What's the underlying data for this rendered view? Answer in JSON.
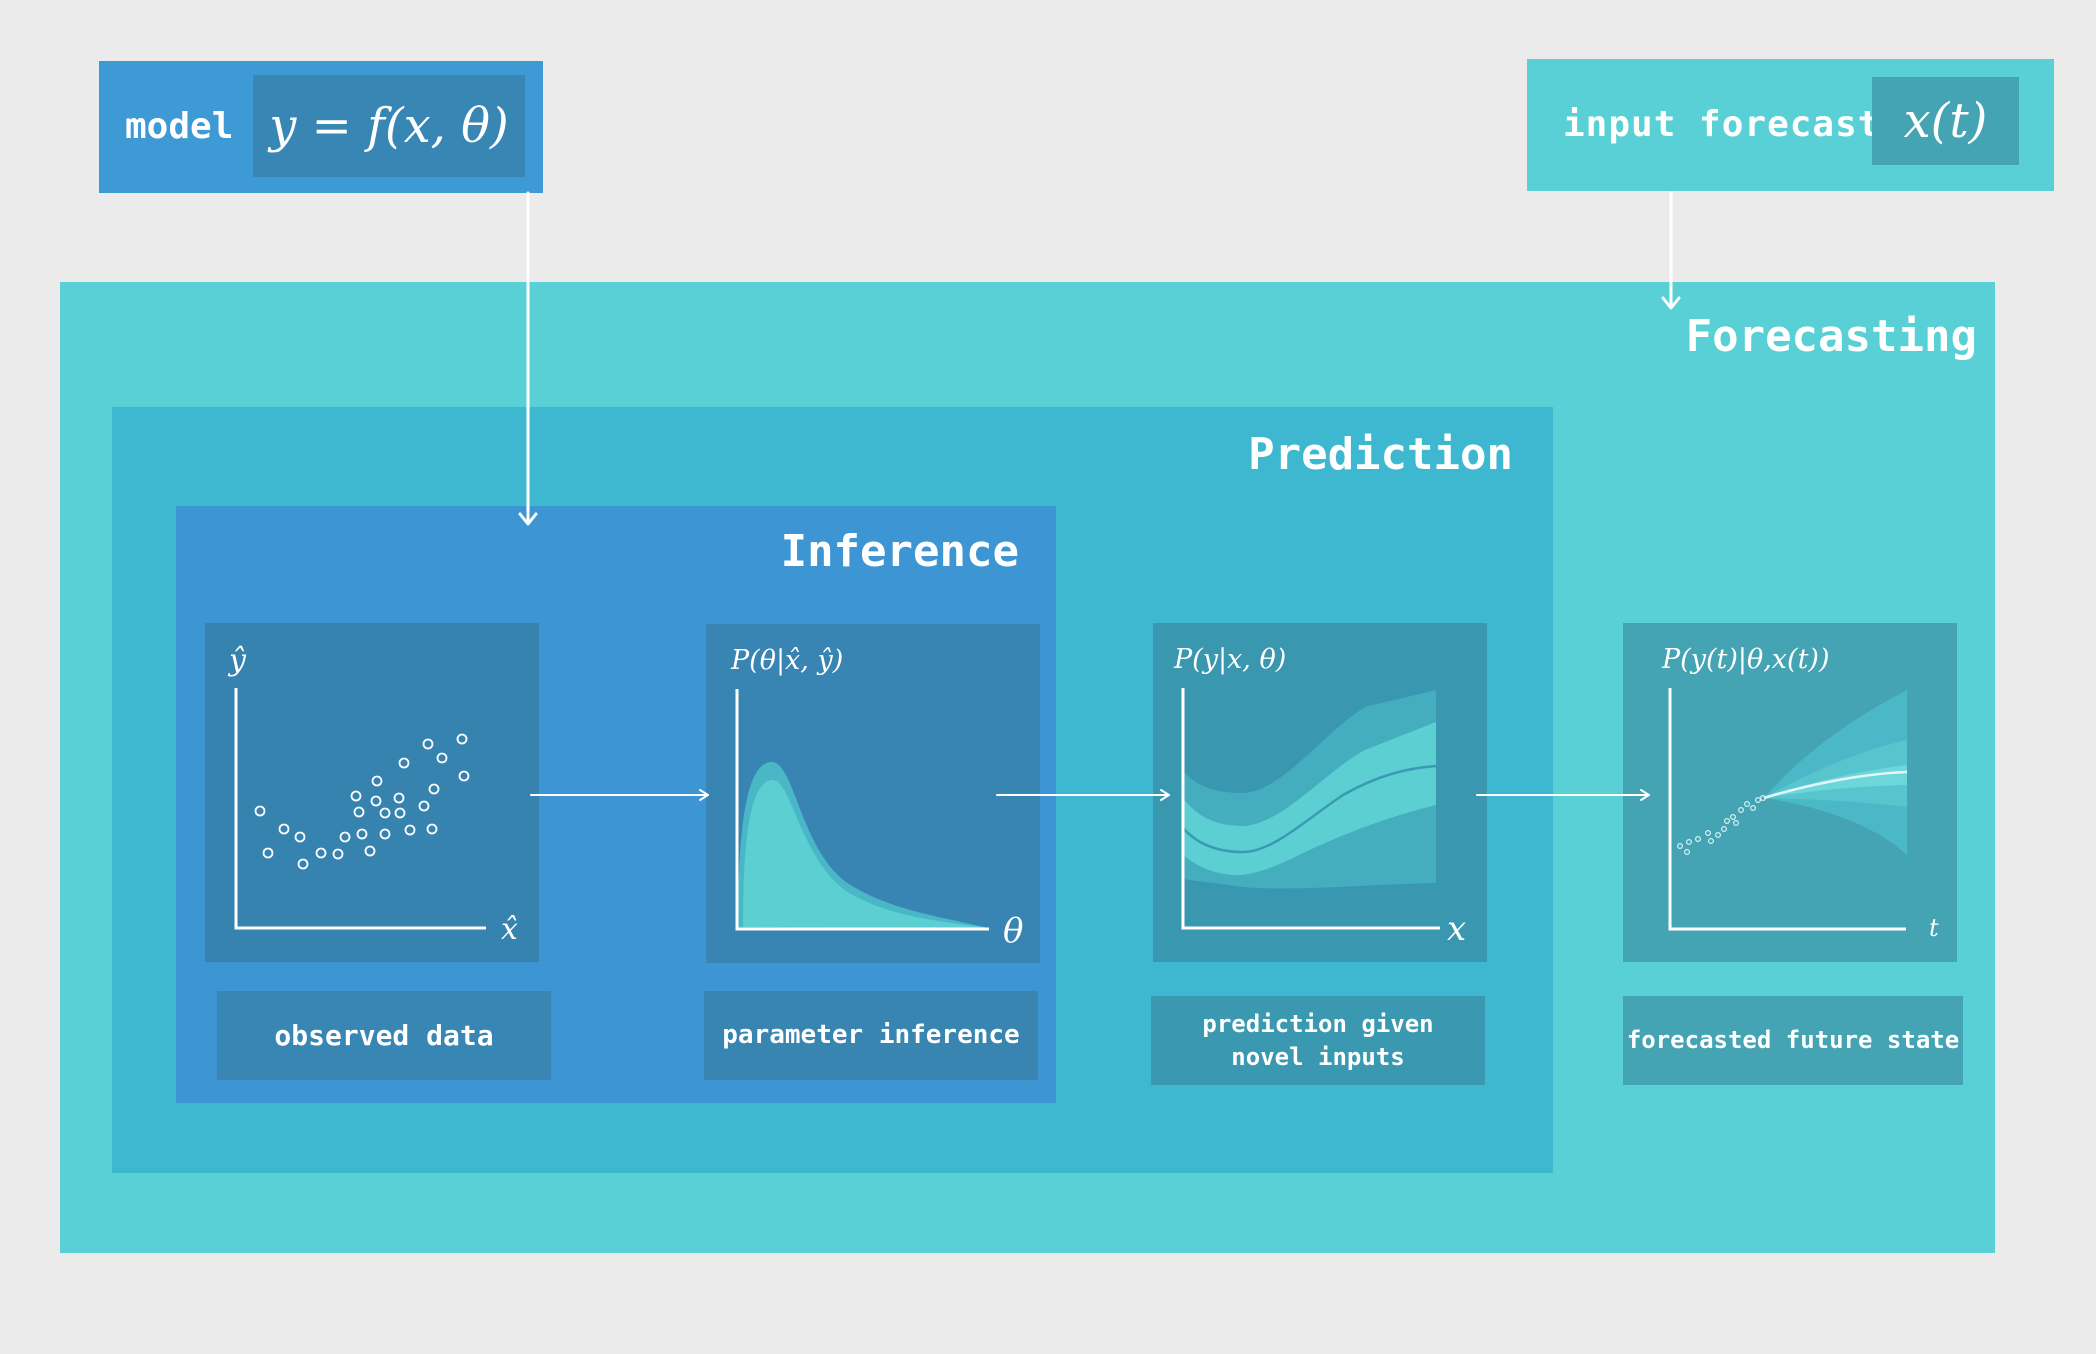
{
  "model": {
    "label": "model",
    "equation": "y = f(x, θ)"
  },
  "input_forecast": {
    "label": "input forecast",
    "equation": "x(t)"
  },
  "regions": {
    "forecasting": "Forecasting",
    "prediction": "Prediction",
    "inference": "Inference"
  },
  "panels": {
    "observed": {
      "y_axis": "ŷ",
      "x_axis": "x̂",
      "caption": "observed data"
    },
    "parameter_inference": {
      "title": "P(θ|x̂, ŷ)",
      "x_axis": "θ",
      "caption": "parameter inference"
    },
    "prediction": {
      "title": "P(y|x, θ)",
      "x_axis": "x",
      "caption": "prediction given novel inputs"
    },
    "forecast": {
      "title": "P(y(t)|θ,x(t))",
      "x_axis": "t",
      "caption": "forecasted future state"
    }
  },
  "colors": {
    "background": "#ebebeb",
    "forecasting": "#58d0d5",
    "prediction": "#3eb8d0",
    "inference": "#3d95d3",
    "model_box": "#3d9ad5",
    "distribution_fill": "#5ccfd3"
  },
  "icons": [
    "arrow-right-icon",
    "arrow-down-icon"
  ]
}
